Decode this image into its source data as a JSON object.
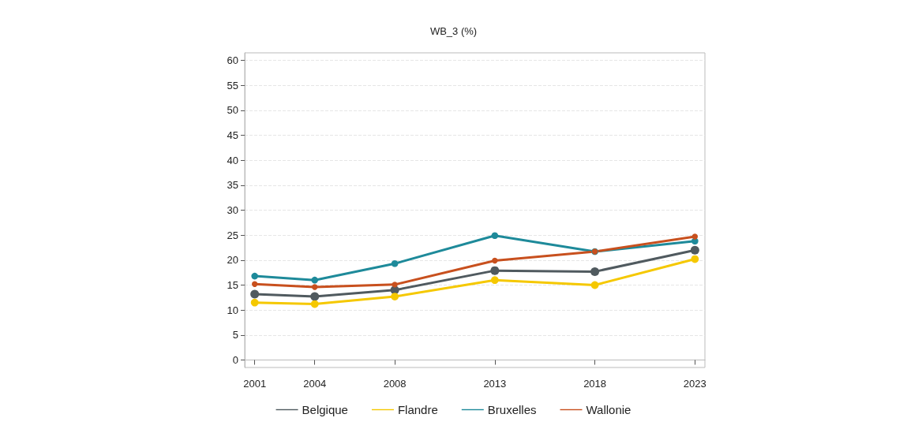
{
  "chart_data": {
    "type": "line",
    "title": "WB_3 (%)",
    "x": [
      2001,
      2004,
      2008,
      2013,
      2018,
      2023
    ],
    "xlim": [
      2000.5,
      2023.5
    ],
    "xticks": [
      2001,
      2004,
      2008,
      2013,
      2018,
      2023
    ],
    "ylim": [
      -1.5,
      61.5
    ],
    "yticks": [
      0,
      5,
      10,
      15,
      20,
      25,
      30,
      35,
      40,
      45,
      50,
      55,
      60
    ],
    "series": [
      {
        "name": "Belgique",
        "color": "#505a5f",
        "values": [
          13.2,
          12.7,
          14.0,
          17.9,
          17.7,
          22.0
        ]
      },
      {
        "name": "Flandre",
        "color": "#f5c800",
        "values": [
          11.5,
          11.2,
          12.7,
          16.0,
          15.0,
          20.2
        ]
      },
      {
        "name": "Bruxelles",
        "color": "#1e8a9a",
        "values": [
          16.8,
          16.0,
          19.3,
          24.9,
          21.7,
          23.8
        ]
      },
      {
        "name": "Wallonie",
        "color": "#c8501e",
        "values": [
          15.2,
          14.6,
          15.1,
          19.9,
          21.7,
          24.7
        ]
      }
    ],
    "grid": "y",
    "legend": "bottom",
    "marker": "circle",
    "line_style": "solid"
  }
}
